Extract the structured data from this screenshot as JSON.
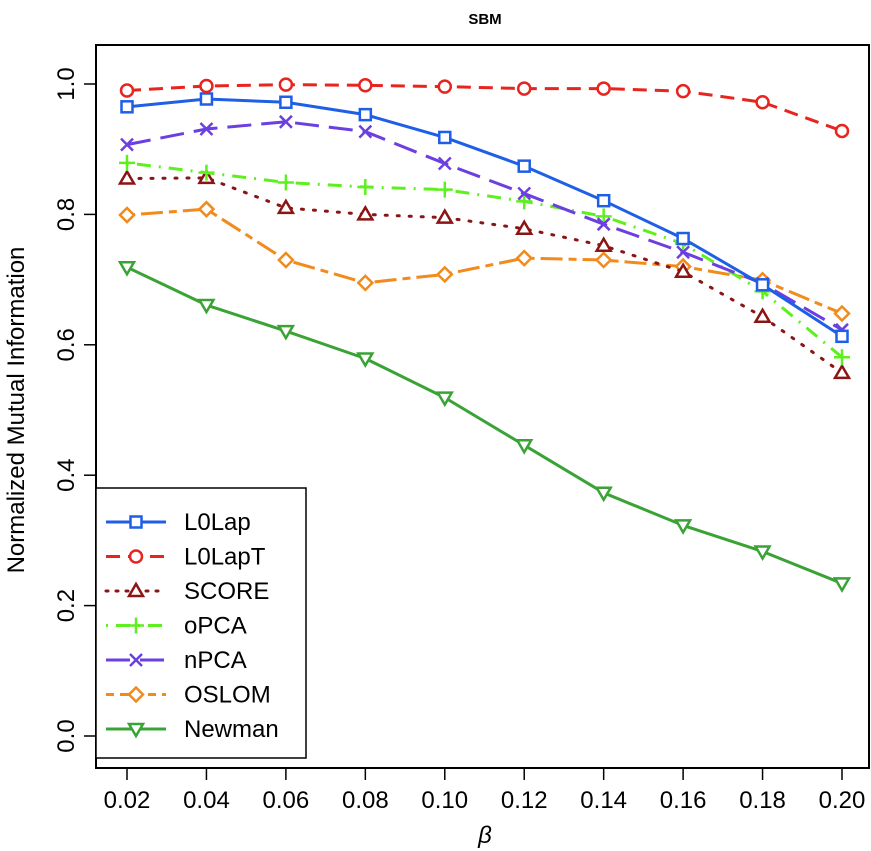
{
  "chart_data": {
    "type": "line",
    "title": "SBM",
    "xlabel": "β",
    "ylabel": "Normalized Mutual Information",
    "x": [
      0.02,
      0.04,
      0.06,
      0.08,
      0.1,
      0.12,
      0.14,
      0.16,
      0.18,
      0.2
    ],
    "x_tick_labels": [
      "0.02",
      "0.04",
      "0.06",
      "0.08",
      "0.10",
      "0.12",
      "0.14",
      "0.16",
      "0.18",
      "0.20"
    ],
    "y_ticks": [
      0.0,
      0.2,
      0.4,
      0.6,
      0.8,
      1.0
    ],
    "y_tick_labels": [
      "0.0",
      "0.2",
      "0.4",
      "0.6",
      "0.8",
      "1.0"
    ],
    "ylim": [
      -0.03,
      1.03
    ],
    "legend_position": "bottom-left",
    "series": [
      {
        "name": "L0Lap",
        "color": "#1f5fe6",
        "marker": "square",
        "dash": "solid",
        "values": [
          0.965,
          0.977,
          0.972,
          0.953,
          0.918,
          0.874,
          0.821,
          0.763,
          0.692,
          0.613
        ]
      },
      {
        "name": "L0LapT",
        "color": "#e8241f",
        "marker": "circle",
        "dash": "dashed",
        "values": [
          0.99,
          0.997,
          0.999,
          0.998,
          0.996,
          0.993,
          0.993,
          0.989,
          0.972,
          0.928
        ]
      },
      {
        "name": "SCORE",
        "color": "#8b1414",
        "marker": "triangle-up",
        "dash": "dotted",
        "values": [
          0.855,
          0.856,
          0.81,
          0.8,
          0.795,
          0.778,
          0.752,
          0.712,
          0.643,
          0.557
        ]
      },
      {
        "name": "oPCA",
        "color": "#5ef01e",
        "marker": "plus",
        "dash": "dashdot",
        "values": [
          0.879,
          0.864,
          0.849,
          0.842,
          0.838,
          0.82,
          0.797,
          0.755,
          0.682,
          0.581
        ]
      },
      {
        "name": "nPCA",
        "color": "#6b3fe0",
        "marker": "cross",
        "dash": "longdash",
        "values": [
          0.907,
          0.931,
          0.942,
          0.927,
          0.878,
          0.832,
          0.785,
          0.742,
          0.694,
          0.623
        ]
      },
      {
        "name": "OSLOM",
        "color": "#f28a1c",
        "marker": "diamond",
        "dash": "twodash",
        "values": [
          0.799,
          0.808,
          0.73,
          0.695,
          0.708,
          0.733,
          0.73,
          0.72,
          0.699,
          0.648
        ]
      },
      {
        "name": "Newman",
        "color": "#3aa335",
        "marker": "triangle-down",
        "dash": "solid",
        "values": [
          0.719,
          0.661,
          0.621,
          0.579,
          0.519,
          0.446,
          0.373,
          0.323,
          0.283,
          0.234
        ]
      }
    ]
  }
}
